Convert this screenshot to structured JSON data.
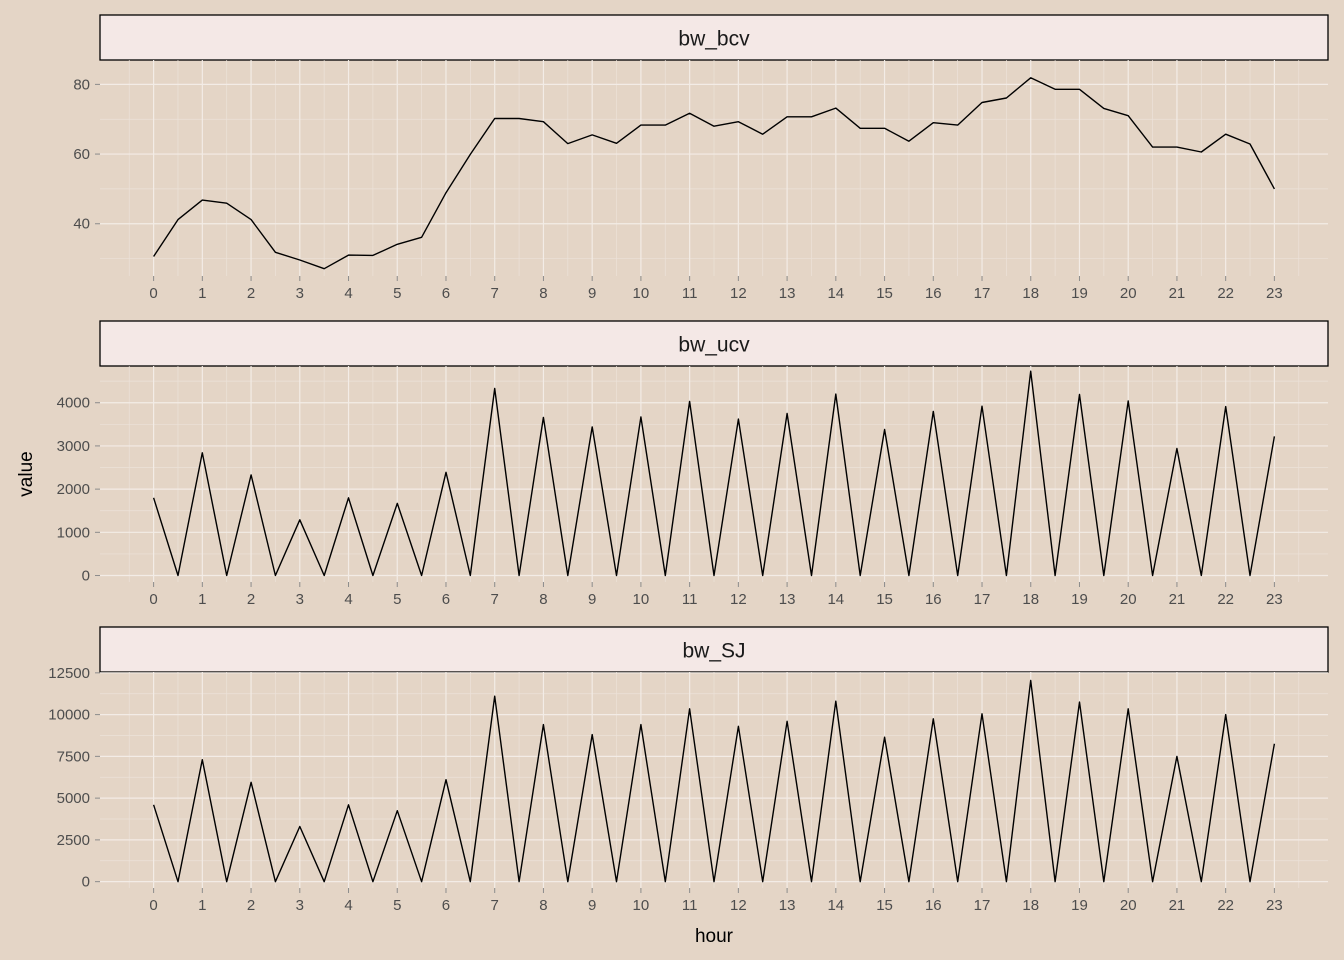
{
  "chart_data": {
    "type": "line",
    "xlabel": "hour",
    "ylabel": "value",
    "colors": {
      "background": "#e4d5c6",
      "strip": "#f4e8e6",
      "line": "#000000"
    },
    "x_ticks": [
      "0",
      "1",
      "2",
      "3",
      "4",
      "5",
      "6",
      "7",
      "8",
      "9",
      "10",
      "11",
      "12",
      "13",
      "14",
      "15",
      "16",
      "17",
      "18",
      "19",
      "20",
      "21",
      "22",
      "23"
    ],
    "x": [
      0,
      0.5,
      1,
      1.5,
      2,
      2.5,
      3,
      3.5,
      4,
      4.5,
      5,
      5.5,
      6,
      6.5,
      7,
      7.5,
      8,
      8.5,
      9,
      9.5,
      10,
      10.5,
      11,
      11.5,
      12,
      12.5,
      13,
      13.5,
      14,
      14.5,
      15,
      15.5,
      16,
      16.5,
      17,
      17.5,
      18,
      18.5,
      19,
      19.5,
      20,
      20.5,
      21,
      21.5,
      22,
      22.5,
      23
    ],
    "xlim": [
      -1.1,
      24.1
    ],
    "grid": true,
    "panels": [
      {
        "title": "bw_bcv",
        "ylim": [
          25,
          87
        ],
        "y_ticks": [
          40,
          60,
          80
        ],
        "y_minor": [
          30,
          50,
          70
        ],
        "values": [
          30.6,
          41.2,
          46.8,
          45.9,
          41.2,
          31.8,
          29.6,
          27.1,
          31.0,
          30.9,
          34.1,
          36.1,
          48.9,
          59.9,
          70.2,
          70.2,
          69.3,
          63.0,
          65.5,
          63.1,
          68.3,
          68.3,
          71.7,
          68.0,
          69.3,
          65.7,
          70.7,
          70.7,
          73.2,
          67.4,
          67.4,
          63.7,
          69.0,
          68.3,
          74.8,
          76.1,
          81.9,
          78.6,
          78.6,
          73.1,
          71.0,
          62.0,
          62.0,
          60.6,
          65.7,
          62.9,
          50.0
        ]
      },
      {
        "title": "bw_ucv",
        "ylim": [
          -150,
          4850
        ],
        "y_ticks": [
          0,
          1000,
          2000,
          3000,
          4000
        ],
        "y_minor": [
          500,
          1500,
          2500,
          3500,
          4500
        ],
        "values": [
          1800,
          0,
          2840,
          0,
          2330,
          0,
          1290,
          0,
          1800,
          0,
          1670,
          0,
          2390,
          0,
          4330,
          0,
          3660,
          0,
          3440,
          0,
          3670,
          0,
          4030,
          0,
          3620,
          0,
          3750,
          0,
          4200,
          0,
          3380,
          0,
          3800,
          0,
          3920,
          0,
          4730,
          0,
          4190,
          0,
          4040,
          0,
          2940,
          0,
          3910,
          0,
          3220
        ]
      },
      {
        "title": "bw_SJ",
        "ylim": [
          -380,
          12550
        ],
        "y_ticks": [
          0,
          2500,
          5000,
          7500,
          10000,
          12500
        ],
        "y_minor": [
          1250,
          3750,
          6250,
          8750,
          11250
        ],
        "values": [
          4600,
          0,
          7300,
          0,
          5950,
          0,
          3300,
          0,
          4600,
          0,
          4250,
          0,
          6100,
          0,
          11100,
          0,
          9400,
          0,
          8800,
          0,
          9400,
          0,
          10350,
          0,
          9300,
          0,
          9600,
          0,
          10800,
          0,
          8650,
          0,
          9750,
          0,
          10050,
          0,
          12050,
          0,
          10750,
          0,
          10350,
          0,
          7500,
          0,
          10000,
          0,
          8250
        ]
      }
    ]
  }
}
